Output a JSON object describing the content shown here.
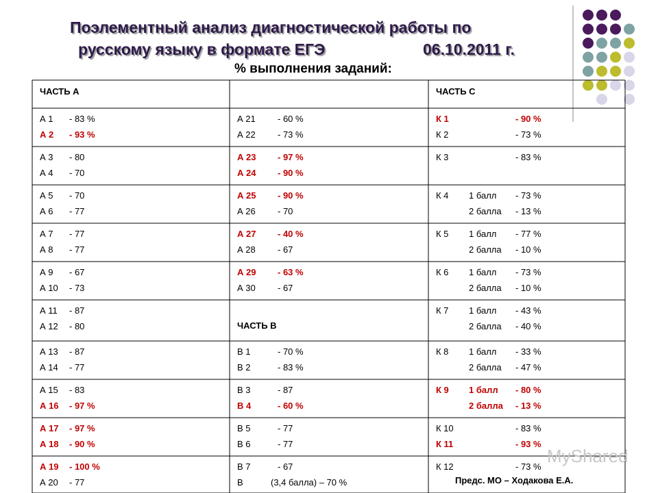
{
  "title": {
    "line1": "Поэлементный анализ диагностической работы по",
    "line2": "русскому языку в формате ЕГЭ",
    "date": "06.10.2011 г.",
    "subtitle": "% выполнения заданий:"
  },
  "table": {
    "header": {
      "left": "ЧАСТЬ А",
      "right": "ЧАСТЬ С"
    },
    "rows": [
      [
        {
          "lines": [
            {
              "item": "А 1",
              "value": "- 83 %"
            },
            {
              "item": "А 2",
              "value": "- 93 %",
              "red": true
            }
          ]
        },
        {
          "lines": [
            {
              "item": "А 21",
              "value": "- 60 %"
            },
            {
              "item": "А 22",
              "value": "- 73 %"
            }
          ]
        },
        {
          "lines": [
            {
              "item": "К 1",
              "value": "- 90 %",
              "red": true
            },
            {
              "item": "К 2",
              "value": "- 73 %"
            }
          ]
        }
      ],
      [
        {
          "lines": [
            {
              "item": "А 3",
              "value": "- 80"
            },
            {
              "item": "А 4",
              "value": "- 70"
            }
          ]
        },
        {
          "lines": [
            {
              "item": "А 23",
              "value": "- 97 %",
              "red": true
            },
            {
              "item": "А 24",
              "value": "- 90 %",
              "red": true
            }
          ]
        },
        {
          "lines": [
            {
              "item": "К 3",
              "value": "- 83 %"
            }
          ]
        }
      ],
      [
        {
          "lines": [
            {
              "item": "А 5",
              "value": "- 70"
            },
            {
              "item": "А 6",
              "value": "- 77"
            }
          ]
        },
        {
          "lines": [
            {
              "item": "А 25",
              "value": "- 90 %",
              "red": true
            },
            {
              "item": "А 26",
              "value": "- 70"
            }
          ]
        },
        {
          "lines": [
            {
              "item": "К 4",
              "sub": "1 балл",
              "value": "- 73 %"
            },
            {
              "sub": "2 балла",
              "value": "- 13 %"
            }
          ]
        }
      ],
      [
        {
          "lines": [
            {
              "item": "А 7",
              "value": "- 77"
            },
            {
              "item": "А 8",
              "value": "- 77"
            }
          ]
        },
        {
          "lines": [
            {
              "item": "А 27",
              "value": "- 40 %",
              "red": true
            },
            {
              "item": "А 28",
              "value": "- 67"
            }
          ]
        },
        {
          "lines": [
            {
              "item": "К 5",
              "sub": "1 балл",
              "value": "- 77 %"
            },
            {
              "sub": "2 балла",
              "value": "- 10 %"
            }
          ]
        }
      ],
      [
        {
          "lines": [
            {
              "item": "А 9",
              "value": "- 67"
            },
            {
              "item": "А 10",
              "value": "- 73"
            }
          ]
        },
        {
          "lines": [
            {
              "item": "А 29",
              "value": "- 63 %",
              "red": true
            },
            {
              "item": "А 30",
              "value": "- 67"
            }
          ]
        },
        {
          "lines": [
            {
              "item": "К 6",
              "sub": "1 балл",
              "value": "- 73 %"
            },
            {
              "sub": "2 балла",
              "value": "- 10 %"
            }
          ]
        }
      ],
      [
        {
          "lines": [
            {
              "item": "А 11",
              "value": "- 87"
            },
            {
              "item": "А 12",
              "value": "- 80"
            }
          ]
        },
        {
          "heading": "ЧАСТЬ В"
        },
        {
          "lines": [
            {
              "item": "К 7",
              "sub": "1 балл",
              "value": "- 43 %"
            },
            {
              "sub": "2 балла",
              "value": "- 40 %"
            }
          ]
        }
      ],
      [
        {
          "lines": [
            {
              "item": "А 13",
              "value": "- 87"
            },
            {
              "item": "А 14",
              "value": "- 77"
            }
          ]
        },
        {
          "lines": [
            {
              "item": "В 1",
              "value": "- 70 %"
            },
            {
              "item": "В 2",
              "value": "- 83 %"
            }
          ]
        },
        {
          "lines": [
            {
              "item": "К 8",
              "sub": "1 балл",
              "value": "- 33 %"
            },
            {
              "sub": "2 балла",
              "value": "- 47 %"
            }
          ]
        }
      ],
      [
        {
          "lines": [
            {
              "item": "А 15",
              "value": "- 83"
            },
            {
              "item": "А 16",
              "value": "- 97 %",
              "red": true
            }
          ]
        },
        {
          "lines": [
            {
              "item": "В 3",
              "value": "- 87"
            },
            {
              "item": "В 4",
              "value": "- 60 %",
              "red": true
            }
          ]
        },
        {
          "lines": [
            {
              "item": "К 9",
              "sub": "1 балл",
              "value": "- 80 %",
              "red": true
            },
            {
              "sub": "2 балла",
              "value": "- 13 %",
              "red": true
            }
          ]
        }
      ],
      [
        {
          "lines": [
            {
              "item": "А 17",
              "value": "- 97 %",
              "red": true
            },
            {
              "item": "А 18",
              "value": "- 90 %",
              "red": true
            }
          ]
        },
        {
          "lines": [
            {
              "item": "В 5",
              "value": "- 77"
            },
            {
              "item": "В 6",
              "value": "- 77"
            }
          ]
        },
        {
          "lines": [
            {
              "item": "К 10",
              "value": "- 83 %"
            },
            {
              "item": "К 11",
              "value": "- 93 %",
              "red": true
            }
          ]
        }
      ],
      [
        {
          "lines": [
            {
              "item": "А 19",
              "value": "- 100 %",
              "red": true
            },
            {
              "item": "А 20",
              "value": "- 77"
            }
          ]
        },
        {
          "lines": [
            {
              "item": "В 7",
              "value": "- 67"
            },
            {
              "item": "В",
              "sub": "(3,4 балла) – 70 %"
            }
          ]
        },
        {
          "lines": [
            {
              "item": "К 12",
              "value": "- 73 %"
            }
          ]
        }
      ]
    ]
  },
  "footer": "Предс. МО – Ходакова Е.А.",
  "watermark": "MyShared"
}
